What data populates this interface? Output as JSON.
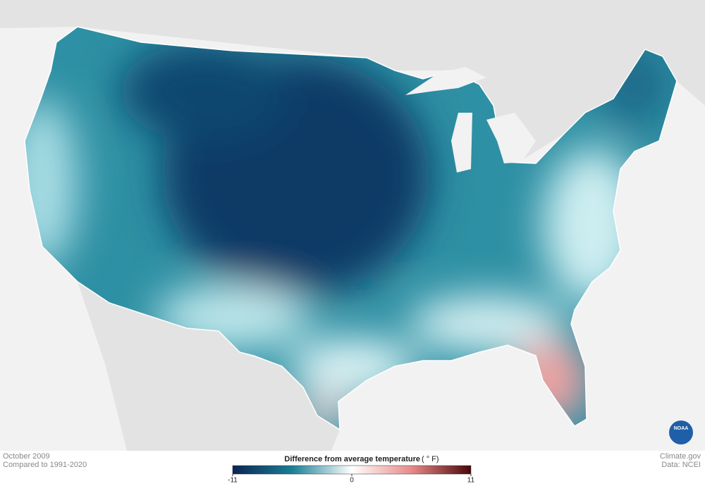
{
  "caption": {
    "period": "October 2009",
    "baseline": "Compared to 1991-2020"
  },
  "legend": {
    "title": "Difference from average temperature",
    "unit": "( ° F)",
    "ticks": [
      -11,
      0,
      11
    ],
    "colors": [
      "#0b2454",
      "#1a7f96",
      "#ffffff",
      "#e88a8a",
      "#4a0707"
    ]
  },
  "credits": {
    "site": "Climate.gov",
    "source": "Data: NCEI"
  },
  "logo": "NOAA"
}
